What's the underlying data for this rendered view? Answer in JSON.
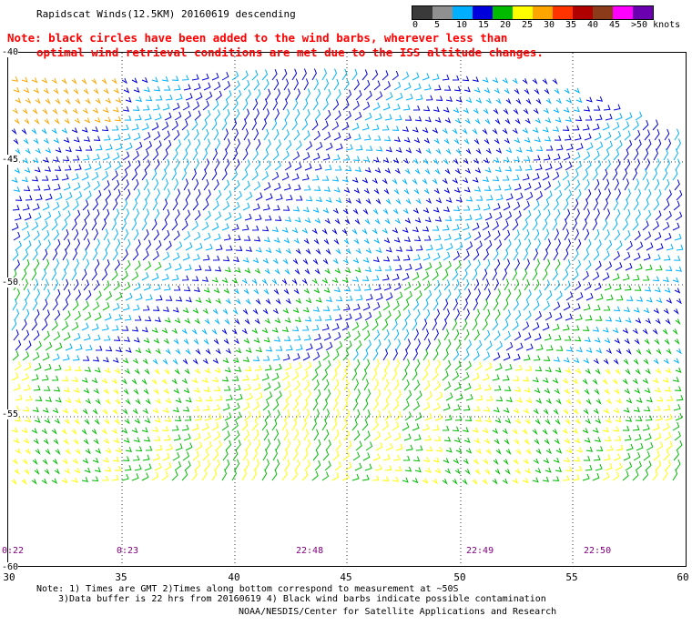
{
  "title": "Rapidscat Winds(12.5KM) 20160619 descending",
  "note_line1": "Note: black circles have been added to the wind barbs, wherever less than",
  "note_line2": "optimal wind retrieval conditions are met due to the ISS altitude changes.",
  "color_scale": {
    "labels": [
      "0",
      "5",
      "10",
      "15",
      "20",
      "25",
      "30",
      "35",
      "40",
      "45",
      ">50 knots"
    ],
    "colors": [
      "#3a3a3a",
      "#909090",
      "#00b0ff",
      "#0000dd",
      "#00bb00",
      "#ffff00",
      "#ffa500",
      "#ff3300",
      "#b00000",
      "#8b3a1a",
      "#ff00ff",
      "#6a00b0"
    ]
  },
  "lat_labels": [
    "-40",
    "-45",
    "-50",
    "-55",
    "-60"
  ],
  "lon_labels": [
    "30",
    "35",
    "40",
    "45",
    "50",
    "55",
    "60"
  ],
  "time_labels": [
    "0:22",
    "0:23",
    "22:48",
    "22:49",
    "22:50"
  ],
  "footer_line1": "Note: 1) Times are GMT 2)Times along bottom correspond to measurement at ~50S",
  "footer_line2": "3)Data buffer is 22 hrs from 20160619 4) Black wind barbs indicate possible contamination",
  "footer_line3": "NOAA/NESDIS/Center for Satellite Applications and Research"
}
